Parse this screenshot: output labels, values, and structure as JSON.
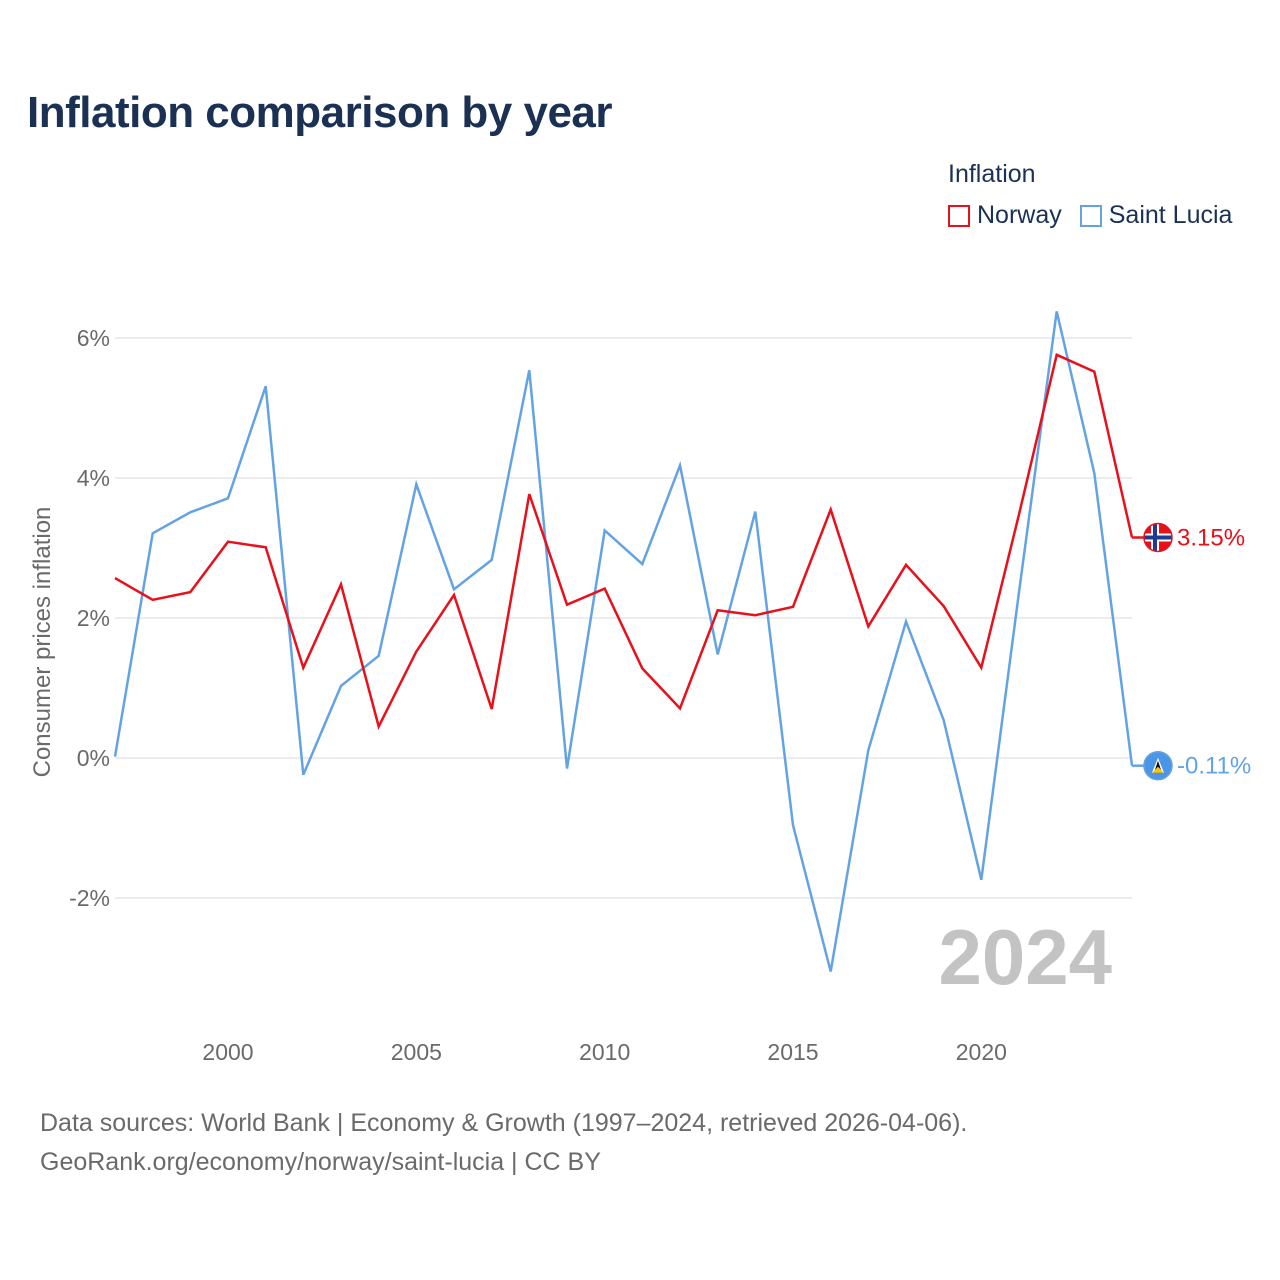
{
  "chart_data": {
    "type": "line",
    "title": "Inflation comparison by year",
    "ylabel": "Consumer prices inflation",
    "xlabel": "",
    "x": [
      1997,
      1998,
      1999,
      2000,
      2001,
      2002,
      2003,
      2004,
      2005,
      2006,
      2007,
      2008,
      2009,
      2010,
      2011,
      2012,
      2013,
      2014,
      2015,
      2016,
      2017,
      2018,
      2019,
      2020,
      2021,
      2022,
      2023,
      2024
    ],
    "series": [
      {
        "name": "Norway",
        "color": "#e8101a",
        "values": [
          2.57,
          2.26,
          2.37,
          3.09,
          3.01,
          1.29,
          2.48,
          0.45,
          1.52,
          2.33,
          0.7,
          3.77,
          2.19,
          2.42,
          1.28,
          0.71,
          2.11,
          2.04,
          2.16,
          3.55,
          1.88,
          2.76,
          2.17,
          1.29,
          3.48,
          5.76,
          5.52,
          3.15
        ],
        "end_label": "3.15%",
        "flag_icon": "norway-flag-icon"
      },
      {
        "name": "Saint Lucia",
        "color": "#64a3e3",
        "values": [
          0.02,
          3.21,
          3.51,
          3.71,
          5.31,
          -0.24,
          1.03,
          1.46,
          3.91,
          2.41,
          2.83,
          5.54,
          -0.15,
          3.25,
          2.77,
          4.18,
          1.48,
          3.52,
          -0.96,
          -3.05,
          0.11,
          1.95,
          0.54,
          -1.74,
          2.37,
          6.38,
          4.07,
          -0.11
        ],
        "end_label": "-0.11%",
        "flag_icon": "saint-lucia-flag-icon"
      }
    ],
    "xticks": [
      2000,
      2005,
      2010,
      2015,
      2020
    ],
    "yticks": [
      -2,
      0,
      2,
      4,
      6
    ],
    "ytick_labels": [
      "-2%",
      "0%",
      "2%",
      "4%",
      "6%"
    ],
    "ylim": [
      -3.5,
      6.75
    ],
    "xlim": [
      1997,
      2024
    ],
    "grid": true,
    "legend": {
      "title": "Inflation",
      "position": "top-right"
    },
    "year_watermark": "2024"
  },
  "footer": {
    "line1": "Data sources: World Bank | Economy & Growth (1997–2024, retrieved 2026-04-06).",
    "line2": "GeoRank.org/economy/norway/saint-lucia | CC BY"
  }
}
